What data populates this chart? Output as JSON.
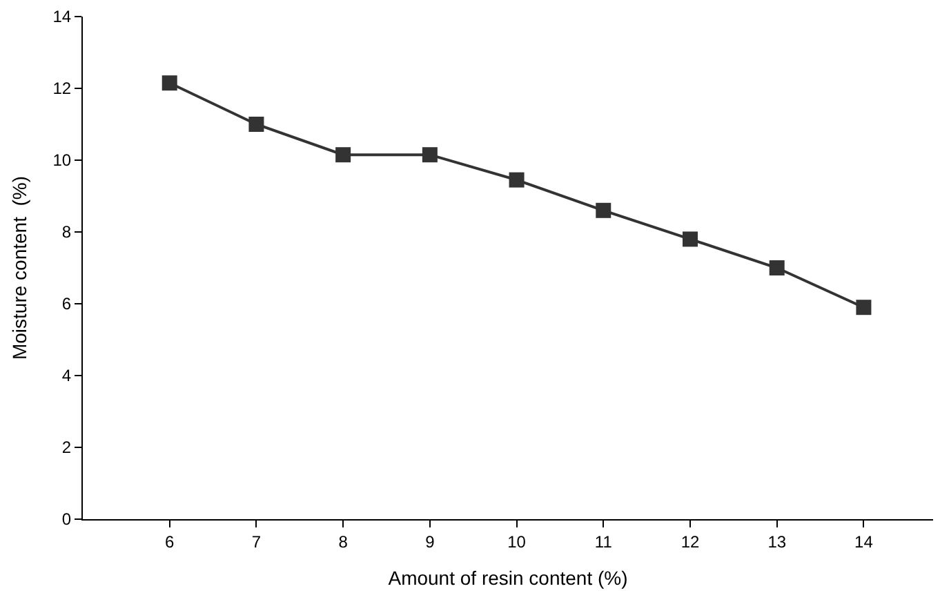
{
  "chart_data": {
    "type": "line",
    "xlabel": "Amount of resin content (%)",
    "ylabel": "Moisture content  (%)",
    "x": [
      6,
      7,
      8,
      9,
      10,
      11,
      12,
      13,
      14
    ],
    "series": [
      {
        "color": "#333333",
        "values": [
          12.15,
          11.0,
          10.15,
          10.15,
          9.45,
          8.6,
          7.8,
          7.0,
          5.9
        ]
      }
    ],
    "xlim": [
      5.0,
      14.8
    ],
    "xticks": [
      6,
      7,
      8,
      9,
      10,
      11,
      12,
      13,
      14
    ],
    "ylim": [
      0,
      14
    ],
    "yticks": [
      0,
      2,
      4,
      6,
      8,
      10,
      12,
      14
    ],
    "marker": "square",
    "line_style": "solid"
  }
}
